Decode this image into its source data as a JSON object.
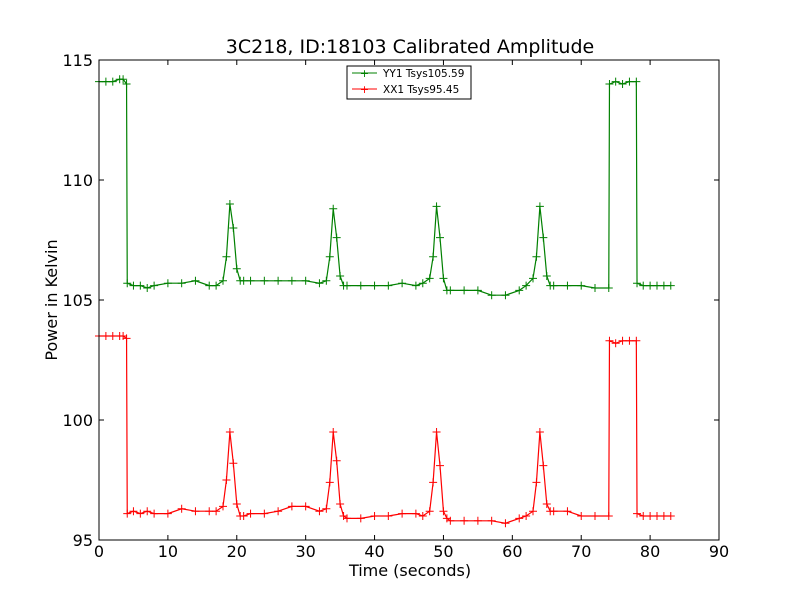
{
  "chart_data": {
    "type": "line",
    "title": "3C218, ID:18103 Calibrated Amplitude",
    "xlabel": "Time (seconds)",
    "ylabel": "Power in Kelvin",
    "xlim": [
      0,
      90
    ],
    "ylim": [
      95,
      115
    ],
    "xticks": [
      "0",
      "10",
      "20",
      "30",
      "40",
      "50",
      "60",
      "70",
      "80",
      "90"
    ],
    "yticks": [
      "95",
      "100",
      "105",
      "110",
      "115"
    ],
    "grid": false,
    "legend_position": "top-center",
    "markers": "+",
    "series": [
      {
        "name": "YY1 Tsys105.59",
        "color": "#008000",
        "x": [
          0,
          1,
          2,
          3,
          3.5,
          4,
          4.1,
          5,
          6,
          7,
          8,
          10,
          12,
          14,
          16,
          17,
          18,
          18.5,
          19,
          19.5,
          20,
          20.5,
          21,
          22,
          24,
          26,
          28,
          30,
          32,
          33,
          33.5,
          34,
          34.5,
          35,
          35.5,
          36,
          38,
          40,
          42,
          44,
          46,
          47,
          48,
          48.5,
          49,
          49.5,
          50,
          50.5,
          51,
          53,
          55,
          57,
          59,
          61,
          62,
          63,
          63.5,
          64,
          64.5,
          65,
          65.5,
          66,
          68,
          70,
          72,
          74,
          74.1,
          75,
          76,
          77,
          78,
          78.1,
          79,
          80,
          81,
          82,
          83
        ],
        "values": [
          114.1,
          114.1,
          114.1,
          114.2,
          114.2,
          114.0,
          105.7,
          105.6,
          105.6,
          105.5,
          105.6,
          105.7,
          105.7,
          105.8,
          105.6,
          105.6,
          105.8,
          106.8,
          109.0,
          108.0,
          106.3,
          105.8,
          105.8,
          105.8,
          105.8,
          105.8,
          105.8,
          105.8,
          105.7,
          105.8,
          106.8,
          108.8,
          107.6,
          106.0,
          105.6,
          105.6,
          105.6,
          105.6,
          105.6,
          105.7,
          105.6,
          105.7,
          105.9,
          106.8,
          108.9,
          107.6,
          105.9,
          105.4,
          105.4,
          105.4,
          105.4,
          105.2,
          105.2,
          105.4,
          105.6,
          105.9,
          106.8,
          108.9,
          107.6,
          106.0,
          105.6,
          105.6,
          105.6,
          105.6,
          105.5,
          105.5,
          114.0,
          114.1,
          114.0,
          114.1,
          114.1,
          105.7,
          105.6,
          105.6,
          105.6,
          105.6,
          105.6
        ]
      },
      {
        "name": "XX1 Tsys95.45",
        "color": "#ff0000",
        "x": [
          0,
          1,
          2,
          3,
          3.5,
          4,
          4.1,
          5,
          6,
          7,
          8,
          10,
          12,
          14,
          16,
          17,
          18,
          18.5,
          19,
          19.5,
          20,
          20.5,
          21,
          22,
          24,
          26,
          28,
          30,
          32,
          33,
          33.5,
          34,
          34.5,
          35,
          35.5,
          36,
          38,
          40,
          42,
          44,
          46,
          47,
          48,
          48.5,
          49,
          49.5,
          50,
          50.5,
          51,
          53,
          55,
          57,
          59,
          61,
          62,
          63,
          63.5,
          64,
          64.5,
          65,
          65.5,
          66,
          68,
          70,
          72,
          74,
          74.1,
          75,
          76,
          77,
          78,
          78.1,
          79,
          80,
          81,
          82,
          83
        ],
        "values": [
          103.5,
          103.5,
          103.5,
          103.5,
          103.5,
          103.4,
          96.1,
          96.2,
          96.1,
          96.2,
          96.1,
          96.1,
          96.3,
          96.2,
          96.2,
          96.2,
          96.4,
          97.5,
          99.5,
          98.2,
          96.5,
          96.0,
          96.0,
          96.1,
          96.1,
          96.2,
          96.4,
          96.4,
          96.2,
          96.3,
          97.4,
          99.5,
          98.3,
          96.5,
          96.0,
          95.9,
          95.9,
          96.0,
          96.0,
          96.1,
          96.1,
          96.0,
          96.2,
          97.4,
          99.5,
          98.1,
          96.2,
          95.9,
          95.8,
          95.8,
          95.8,
          95.8,
          95.7,
          95.9,
          96.0,
          96.2,
          97.4,
          99.5,
          98.1,
          96.5,
          96.2,
          96.2,
          96.2,
          96.0,
          96.0,
          96.0,
          103.3,
          103.2,
          103.3,
          103.3,
          103.3,
          96.1,
          96.0,
          96.0,
          96.0,
          96.0,
          96.0
        ]
      }
    ]
  }
}
